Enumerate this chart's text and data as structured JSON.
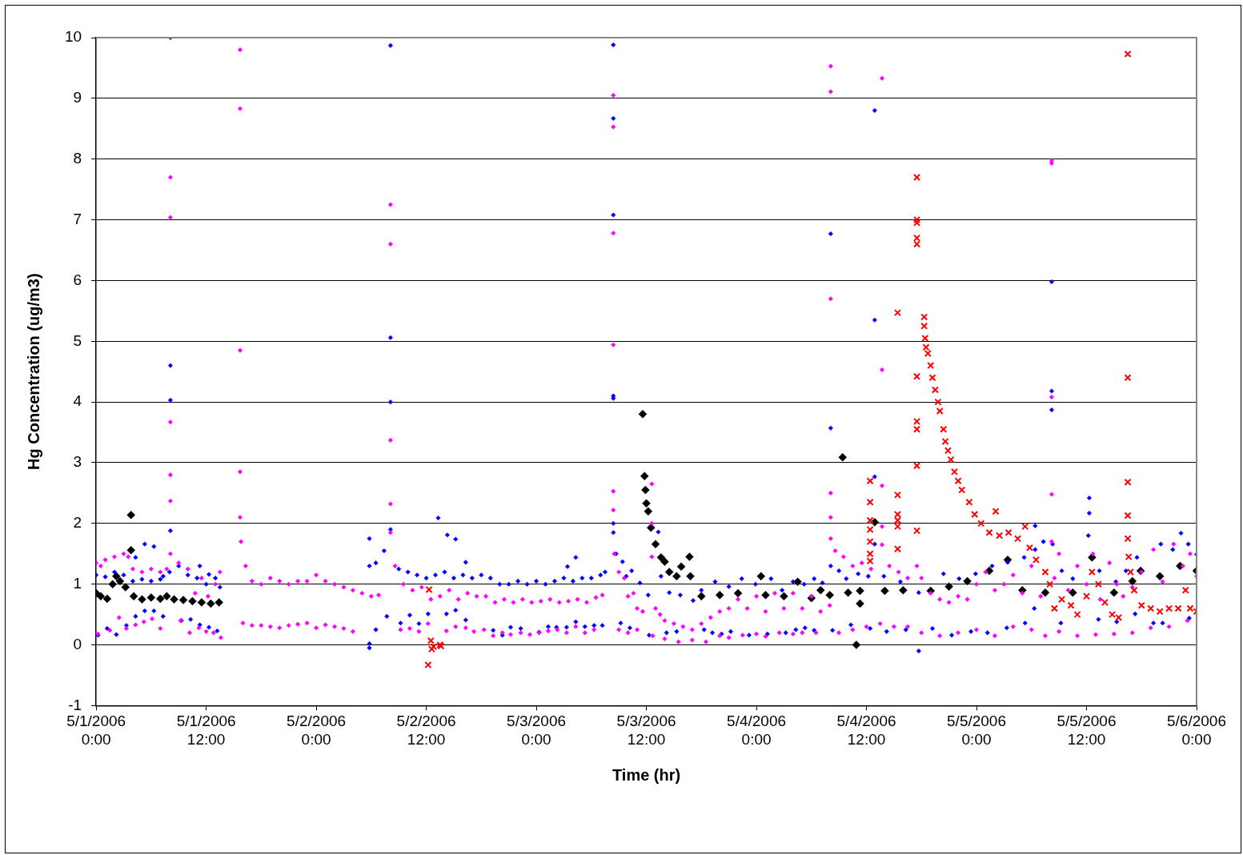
{
  "chart_data": {
    "type": "scatter",
    "xlabel": "Time (hr)",
    "ylabel": "Hg Concentration (ug/m3)",
    "xlim": [
      "2006-05-01T00:00",
      "2006-05-06T00:00"
    ],
    "xticks": [
      {
        "value": "2006-05-01T00:00",
        "label": "5/1/2006 0:00"
      },
      {
        "value": "2006-05-01T12:00",
        "label": "5/1/2006 12:00"
      },
      {
        "value": "2006-05-02T00:00",
        "label": "5/2/2006 0:00"
      },
      {
        "value": "2006-05-02T12:00",
        "label": "5/2/2006 12:00"
      },
      {
        "value": "2006-05-03T00:00",
        "label": "5/3/2006 0:00"
      },
      {
        "value": "2006-05-03T12:00",
        "label": "5/3/2006 12:00"
      },
      {
        "value": "2006-05-04T00:00",
        "label": "5/4/2006 0:00"
      },
      {
        "value": "2006-05-04T12:00",
        "label": "5/4/2006 12:00"
      },
      {
        "value": "2006-05-05T00:00",
        "label": "5/5/2006 0:00"
      },
      {
        "value": "2006-05-05T12:00",
        "label": "5/5/2006 12:00"
      },
      {
        "value": "2006-05-06T00:00",
        "label": "5/6/2006 0:00"
      }
    ],
    "ylim": [
      -1,
      10
    ],
    "yticks": [
      -1,
      0,
      1,
      2,
      3,
      4,
      5,
      6,
      7,
      8,
      9,
      10
    ],
    "grid": "y",
    "legend": false,
    "series": [
      {
        "color": "#000000",
        "marker": "diamond",
        "x": [
          "2006-05-01T00:00",
          "2006-05-01T00:30",
          "2006-05-01T01:12",
          "2006-05-01T01:48",
          "2006-05-01T02:12",
          "2006-05-01T02:36",
          "2006-05-01T03:12",
          "2006-05-01T03:48",
          "2006-05-01T03:48",
          "2006-05-01T04:06",
          "2006-05-01T05:00",
          "2006-05-01T06:00",
          "2006-05-01T07:00",
          "2006-05-01T07:42",
          "2006-05-01T08:30",
          "2006-05-01T09:30",
          "2006-05-01T10:30",
          "2006-05-01T11:30",
          "2006-05-01T12:30",
          "2006-05-01T13:24",
          "2006-05-03T11:36",
          "2006-05-03T11:48",
          "2006-05-03T11:54",
          "2006-05-03T12:00",
          "2006-05-03T12:12",
          "2006-05-03T12:30",
          "2006-05-03T13:00",
          "2006-05-03T13:36",
          "2006-05-03T14:00",
          "2006-05-03T14:30",
          "2006-05-03T15:18",
          "2006-05-03T15:48",
          "2006-05-03T16:42",
          "2006-05-03T16:48",
          "2006-05-03T18:00",
          "2006-05-03T20:00",
          "2006-05-03T22:00",
          "2006-05-04T00:30",
          "2006-05-04T01:00",
          "2006-05-04T03:00",
          "2006-05-04T04:30",
          "2006-05-04T06:00",
          "2006-05-04T07:00",
          "2006-05-04T08:00",
          "2006-05-04T09:24",
          "2006-05-04T10:00",
          "2006-05-04T10:54",
          "2006-05-04T11:18",
          "2006-05-04T11:18",
          "2006-05-04T12:54",
          "2006-05-04T14:00",
          "2006-05-04T16:00",
          "2006-05-04T19:00",
          "2006-05-04T21:00",
          "2006-05-04T23:00",
          "2006-05-05T01:24",
          "2006-05-05T03:24",
          "2006-05-05T05:00",
          "2006-05-05T07:30",
          "2006-05-05T10:30",
          "2006-05-05T12:36",
          "2006-05-05T15:00",
          "2006-05-05T17:00",
          "2006-05-05T17:54",
          "2006-05-05T20:00",
          "2006-05-05T22:12",
          "2006-05-06T00:00"
        ],
        "values": [
          0.85,
          0.8,
          0.76,
          1.0,
          1.13,
          1.05,
          0.95,
          2.14,
          1.56,
          0.8,
          0.75,
          0.78,
          0.76,
          0.8,
          0.75,
          0.74,
          0.72,
          0.7,
          0.68,
          0.7,
          3.8,
          2.78,
          2.55,
          2.33,
          2.2,
          1.93,
          1.66,
          1.44,
          1.37,
          1.2,
          1.13,
          1.29,
          1.45,
          1.13,
          0.8,
          0.82,
          0.85,
          1.13,
          0.82,
          0.8,
          1.04,
          0.77,
          0.9,
          0.82,
          3.09,
          0.86,
          0.0,
          0.68,
          0.89,
          2.02,
          0.89,
          0.9,
          0.89,
          0.96,
          1.05,
          1.22,
          1.4,
          0.9,
          0.86,
          0.86,
          1.44,
          0.86,
          1.05,
          1.22,
          1.13,
          1.3,
          1.22
        ]
      },
      {
        "color": "#0000ff",
        "marker": "diamond",
        "x": [
          "2006-05-01T00:00",
          "2006-05-01T01:00",
          "2006-05-01T02:00",
          "2006-05-01T03:00",
          "2006-05-01T04:00",
          "2006-05-01T05:00",
          "2006-05-01T06:00",
          "2006-05-01T07:00",
          "2006-05-01T08:00",
          "2006-05-01T08:06",
          "2006-05-01T08:06",
          "2006-05-01T08:06",
          "2006-05-01T08:06",
          "2006-05-01T09:00",
          "2006-05-01T10:00",
          "2006-05-01T11:00",
          "2006-05-01T12:00",
          "2006-05-01T13:00",
          "2006-05-01T13:30",
          "2006-05-01T00:12",
          "2006-05-01T01:12",
          "2006-05-01T02:12",
          "2006-05-01T03:18",
          "2006-05-01T04:18",
          "2006-05-01T05:18",
          "2006-05-01T06:18",
          "2006-05-01T07:18",
          "2006-05-01T09:18",
          "2006-05-01T10:18",
          "2006-05-01T11:18",
          "2006-05-01T12:18",
          "2006-05-01T13:12",
          "2006-05-01T05:18",
          "2006-05-01T06:18",
          "2006-05-01T07:18",
          "2006-05-01T04:18",
          "2006-05-01T11:18",
          "2006-05-01T12:18",
          "2006-05-02T05:48",
          "2006-05-02T05:48",
          "2006-05-02T05:48",
          "2006-05-02T05:48",
          "2006-05-02T06:30",
          "2006-05-02T07:24",
          "2006-05-02T08:06",
          "2006-05-02T08:06",
          "2006-05-02T08:06",
          "2006-05-02T08:06",
          "2006-05-02T09:00",
          "2006-05-02T10:00",
          "2006-05-02T11:00",
          "2006-05-02T12:00",
          "2006-05-02T13:00",
          "2006-05-02T14:00",
          "2006-05-02T15:00",
          "2006-05-02T16:00",
          "2006-05-02T17:00",
          "2006-05-02T18:00",
          "2006-05-02T19:00",
          "2006-05-02T20:00",
          "2006-05-02T21:00",
          "2006-05-02T22:00",
          "2006-05-02T23:00",
          "2006-05-03T00:00",
          "2006-05-03T01:00",
          "2006-05-03T02:00",
          "2006-05-03T03:00",
          "2006-05-03T04:00",
          "2006-05-03T05:00",
          "2006-05-03T06:00",
          "2006-05-03T07:00",
          "2006-05-03T07:30",
          "2006-05-02T06:30",
          "2006-05-02T07:42",
          "2006-05-02T09:12",
          "2006-05-02T10:12",
          "2006-05-02T11:12",
          "2006-05-02T12:12",
          "2006-05-02T14:12",
          "2006-05-02T15:12",
          "2006-05-02T16:18",
          "2006-05-02T19:18",
          "2006-05-02T20:18",
          "2006-05-02T21:12",
          "2006-05-02T22:18",
          "2006-05-03T00:18",
          "2006-05-03T01:18",
          "2006-05-03T02:12",
          "2006-05-03T03:18",
          "2006-05-03T04:18",
          "2006-05-03T05:18",
          "2006-05-03T06:18",
          "2006-05-03T07:12",
          "2006-05-02T13:18",
          "2006-05-02T14:18",
          "2006-05-02T15:12",
          "2006-05-02T16:18",
          "2006-05-03T04:18",
          "2006-05-03T03:24",
          "2006-05-03T08:24",
          "2006-05-03T08:24",
          "2006-05-03T08:24",
          "2006-05-03T08:24",
          "2006-05-03T08:24",
          "2006-05-03T08:24",
          "2006-05-03T08:24",
          "2006-05-03T08:42",
          "2006-05-03T09:24",
          "2006-05-03T09:48",
          "2006-05-03T10:24",
          "2006-05-03T11:18",
          "2006-05-03T12:12",
          "2006-05-03T13:18",
          "2006-05-03T13:36",
          "2006-05-03T14:30",
          "2006-05-03T15:42",
          "2006-05-03T17:06",
          "2006-05-03T18:00",
          "2006-05-03T19:30",
          "2006-05-03T21:00",
          "2006-05-03T22:24",
          "2006-05-03T23:54",
          "2006-05-04T01:36",
          "2006-05-04T02:48",
          "2006-05-04T04:00",
          "2006-05-04T05:12",
          "2006-05-04T06:18",
          "2006-05-03T09:12",
          "2006-05-03T10:12",
          "2006-05-03T12:18",
          "2006-05-03T14:12",
          "2006-05-03T15:18",
          "2006-05-03T18:18",
          "2006-05-03T19:12",
          "2006-05-03T20:12",
          "2006-05-03T21:12",
          "2006-05-03T23:12",
          "2006-05-04T01:12",
          "2006-05-04T03:12",
          "2006-05-04T04:18",
          "2006-05-04T05:18",
          "2006-05-04T06:18",
          "2006-05-04T07:12",
          "2006-05-04T08:06",
          "2006-05-04T08:06",
          "2006-05-04T08:06",
          "2006-05-04T09:00",
          "2006-05-04T09:48",
          "2006-05-04T11:06",
          "2006-05-04T12:12",
          "2006-05-04T12:54",
          "2006-05-04T12:54",
          "2006-05-04T12:54",
          "2006-05-04T12:54",
          "2006-05-04T13:54",
          "2006-05-04T15:42",
          "2006-05-04T17:42",
          "2006-05-04T17:42",
          "2006-05-04T20:24",
          "2006-05-04T22:06",
          "2006-05-04T23:54",
          "2006-05-05T01:42",
          "2006-05-05T03:24",
          "2006-05-05T05:12",
          "2006-05-05T06:24",
          "2006-05-05T06:24",
          "2006-05-05T07:18",
          "2006-05-05T08:18",
          "2006-05-05T08:12",
          "2006-05-05T08:12",
          "2006-05-05T08:12",
          "2006-05-05T09:18",
          "2006-05-05T10:30",
          "2006-05-05T12:12",
          "2006-05-05T12:18",
          "2006-05-05T12:18",
          "2006-05-05T13:24",
          "2006-05-05T15:12",
          "2006-05-05T16:18",
          "2006-05-05T17:30",
          "2006-05-05T19:18",
          "2006-05-05T20:06",
          "2006-05-05T21:24",
          "2006-05-05T22:18",
          "2006-05-05T23:06",
          "2006-05-06T00:00",
          "2006-05-04T08:18",
          "2006-05-04T10:18",
          "2006-05-04T12:24",
          "2006-05-04T14:12",
          "2006-05-04T16:18",
          "2006-05-04T19:12",
          "2006-05-04T21:18",
          "2006-05-04T23:24",
          "2006-05-05T01:12",
          "2006-05-05T03:18",
          "2006-05-05T05:18",
          "2006-05-05T06:18",
          "2006-05-05T09:12",
          "2006-05-05T13:18",
          "2006-05-05T15:18",
          "2006-05-05T17:18",
          "2006-05-05T19:18",
          "2006-05-05T20:18",
          "2006-05-05T23:12"
        ],
        "values": [
          1.15,
          1.12,
          1.2,
          1.15,
          1.05,
          1.08,
          1.05,
          1.08,
          1.2,
          1.88,
          4.03,
          4.6,
          10.0,
          1.3,
          1.15,
          1.1,
          1.0,
          1.1,
          0.95,
          0.16,
          0.27,
          0.17,
          0.32,
          0.47,
          0.56,
          0.56,
          0.47,
          0.4,
          0.42,
          0.33,
          0.29,
          0.23,
          1.66,
          1.62,
          1.13,
          1.44,
          1.3,
          1.16,
          -0.05,
          0.02,
          1.3,
          1.75,
          1.35,
          1.55,
          1.9,
          4.0,
          5.06,
          9.87,
          1.25,
          1.2,
          1.15,
          1.1,
          1.15,
          1.2,
          1.1,
          1.15,
          1.1,
          1.15,
          1.1,
          1.0,
          1.0,
          1.05,
          1.0,
          1.05,
          1.0,
          1.05,
          1.1,
          1.05,
          1.1,
          1.1,
          1.15,
          1.2,
          0.25,
          0.47,
          0.36,
          0.49,
          0.35,
          0.51,
          0.51,
          0.57,
          0.41,
          0.24,
          0.16,
          0.29,
          0.27,
          0.21,
          0.3,
          0.29,
          0.29,
          0.38,
          0.3,
          0.32,
          0.32,
          2.09,
          1.81,
          1.74,
          1.36,
          1.44,
          1.29,
          1.85,
          2.0,
          4.06,
          4.1,
          7.08,
          8.67,
          9.88,
          1.5,
          1.37,
          1.13,
          1.22,
          1.02,
          0.82,
          1.86,
          1.13,
          0.86,
          0.82,
          0.73,
          0.9,
          1.04,
          0.96,
          1.09,
          1.0,
          1.09,
          0.9,
          1.04,
          1.0,
          1.09,
          0.36,
          0.28,
          0.16,
          0.2,
          0.22,
          0.25,
          0.2,
          0.18,
          0.22,
          0.16,
          0.18,
          0.2,
          0.25,
          0.28,
          0.24,
          1.02,
          1.3,
          3.57,
          6.77,
          1.22,
          1.09,
          1.17,
          1.13,
          2.77,
          5.35,
          8.8,
          1.66,
          1.13,
          1.04,
          0.86,
          -0.1,
          1.17,
          1.09,
          1.17,
          1.3,
          1.36,
          1.44,
          1.57,
          1.96,
          1.7,
          1.66,
          3.87,
          4.18,
          5.98,
          1.22,
          1.09,
          1.8,
          2.42,
          2.17,
          1.22,
          1.04,
          1.22,
          1.44,
          null,
          1.66,
          1.57,
          1.84,
          1.66,
          1.49,
          0.24,
          0.33,
          0.27,
          0.22,
          0.25,
          0.27,
          0.16,
          0.22,
          0.2,
          0.28,
          0.36,
          0.6,
          0.36,
          0.42,
          0.38,
          0.51,
          0.36,
          0.36,
          0.44
        ]
      },
      {
        "color": "#ff00ff",
        "marker": "diamond",
        "x": [
          "2006-05-01T00:00",
          "2006-05-01T00:30",
          "2006-05-01T01:00",
          "2006-05-01T02:00",
          "2006-05-01T03:00",
          "2006-05-01T03:30",
          "2006-05-01T04:00",
          "2006-05-01T05:00",
          "2006-05-01T06:00",
          "2006-05-01T07:00",
          "2006-05-01T07:42",
          "2006-05-01T08:06",
          "2006-05-01T08:06",
          "2006-05-01T08:06",
          "2006-05-01T08:06",
          "2006-05-01T08:06",
          "2006-05-01T08:06",
          "2006-05-01T09:00",
          "2006-05-01T10:00",
          "2006-05-01T10:48",
          "2006-05-01T11:30",
          "2006-05-01T12:12",
          "2006-05-01T13:00",
          "2006-05-01T13:30",
          "2006-05-01T00:12",
          "2006-05-01T01:30",
          "2006-05-01T02:30",
          "2006-05-01T03:18",
          "2006-05-01T04:18",
          "2006-05-01T05:12",
          "2006-05-01T06:06",
          "2006-05-01T07:00",
          "2006-05-01T09:12",
          "2006-05-01T10:12",
          "2006-05-01T11:12",
          "2006-05-01T12:00",
          "2006-05-01T12:48",
          "2006-05-01T13:36",
          "2006-05-01T15:42",
          "2006-05-01T15:42",
          "2006-05-01T15:42",
          "2006-05-01T15:42",
          "2006-05-01T15:42",
          "2006-05-01T15:48",
          "2006-05-01T16:18",
          "2006-05-01T17:00",
          "2006-05-01T18:00",
          "2006-05-01T19:00",
          "2006-05-01T20:00",
          "2006-05-01T21:00",
          "2006-05-01T22:00",
          "2006-05-01T23:00",
          "2006-05-02T00:00",
          "2006-05-02T01:00",
          "2006-05-02T02:00",
          "2006-05-02T03:00",
          "2006-05-02T04:00",
          "2006-05-02T05:00",
          "2006-05-02T06:00",
          "2006-05-02T06:48",
          "2006-05-01T16:00",
          "2006-05-01T17:00",
          "2006-05-01T18:00",
          "2006-05-01T19:00",
          "2006-05-01T20:00",
          "2006-05-01T21:00",
          "2006-05-01T22:00",
          "2006-05-01T23:00",
          "2006-05-02T00:00",
          "2006-05-02T01:00",
          "2006-05-02T02:00",
          "2006-05-02T03:00",
          "2006-05-02T04:00",
          "2006-05-02T08:06",
          "2006-05-02T08:06",
          "2006-05-02T08:06",
          "2006-05-02T08:06",
          "2006-05-02T08:06",
          "2006-05-02T08:36",
          "2006-05-02T09:30",
          "2006-05-02T10:30",
          "2006-05-02T11:30",
          "2006-05-02T12:30",
          "2006-05-02T13:30",
          "2006-05-02T14:30",
          "2006-05-02T15:30",
          "2006-05-02T16:30",
          "2006-05-02T17:30",
          "2006-05-02T18:30",
          "2006-05-02T19:30",
          "2006-05-02T20:30",
          "2006-05-02T21:30",
          "2006-05-02T22:30",
          "2006-05-02T23:30",
          "2006-05-03T00:30",
          "2006-05-03T01:30",
          "2006-05-03T02:30",
          "2006-05-03T03:30",
          "2006-05-03T04:30",
          "2006-05-03T05:30",
          "2006-05-03T06:30",
          "2006-05-03T07:12",
          "2006-05-02T09:12",
          "2006-05-02T10:12",
          "2006-05-02T11:12",
          "2006-05-02T12:12",
          "2006-05-02T14:12",
          "2006-05-02T15:12",
          "2006-05-02T16:18",
          "2006-05-02T17:12",
          "2006-05-02T18:18",
          "2006-05-02T19:18",
          "2006-05-02T20:18",
          "2006-05-02T21:12",
          "2006-05-02T22:18",
          "2006-05-02T23:18",
          "2006-05-03T00:18",
          "2006-05-03T01:18",
          "2006-05-03T02:18",
          "2006-05-03T03:18",
          "2006-05-03T04:18",
          "2006-05-03T05:18",
          "2006-05-03T06:18",
          "2006-05-03T08:24",
          "2006-05-03T08:24",
          "2006-05-03T08:24",
          "2006-05-03T08:24",
          "2006-05-03T08:24",
          "2006-05-03T08:24",
          "2006-05-03T08:30",
          "2006-05-03T09:00",
          "2006-05-03T09:36",
          "2006-05-03T10:00",
          "2006-05-03T10:36",
          "2006-05-03T11:00",
          "2006-05-03T11:36",
          "2006-05-03T12:36",
          "2006-05-03T12:36",
          "2006-05-03T12:36",
          "2006-05-03T13:00",
          "2006-05-03T13:30",
          "2006-05-03T14:00",
          "2006-05-03T15:00",
          "2006-05-03T16:00",
          "2006-05-03T17:00",
          "2006-05-03T18:00",
          "2006-05-03T19:00",
          "2006-05-03T20:00",
          "2006-05-03T21:00",
          "2006-05-03T22:00",
          "2006-05-03T23:00",
          "2006-05-04T00:00",
          "2006-05-04T01:00",
          "2006-05-04T02:00",
          "2006-05-04T03:00",
          "2006-05-04T04:00",
          "2006-05-04T05:00",
          "2006-05-04T06:00",
          "2006-05-04T07:00",
          "2006-05-04T08:00",
          "2006-05-03T09:00",
          "2006-05-03T10:00",
          "2006-05-03T11:00",
          "2006-05-03T12:42",
          "2006-05-03T14:00",
          "2006-05-03T15:30",
          "2006-05-03T17:00",
          "2006-05-03T18:30",
          "2006-05-03T20:00",
          "2006-05-03T21:00",
          "2006-05-03T22:30",
          "2006-05-04T00:00",
          "2006-05-04T01:00",
          "2006-05-04T02:30",
          "2006-05-04T04:00",
          "2006-05-04T05:00",
          "2006-05-04T06:30",
          "2006-05-04T08:06",
          "2006-05-04T08:06",
          "2006-05-04T08:06",
          "2006-05-04T08:06",
          "2006-05-04T08:06",
          "2006-05-04T08:06",
          "2006-05-04T08:36",
          "2006-05-04T09:30",
          "2006-05-04T10:30",
          "2006-05-04T11:30",
          "2006-05-04T12:30",
          "2006-05-04T13:42",
          "2006-05-04T13:42",
          "2006-05-04T13:42",
          "2006-05-04T13:42",
          "2006-05-04T13:42",
          "2006-05-04T14:30",
          "2006-05-04T15:30",
          "2006-05-04T16:30",
          "2006-05-04T17:30",
          "2006-05-04T18:00",
          "2006-05-04T19:00",
          "2006-05-04T20:00",
          "2006-05-04T21:00",
          "2006-05-04T22:00",
          "2006-05-04T23:00",
          "2006-05-05T00:00",
          "2006-05-05T01:00",
          "2006-05-05T02:00",
          "2006-05-05T03:00",
          "2006-05-05T04:00",
          "2006-05-05T05:00",
          "2006-05-05T06:00",
          "2006-05-05T07:00",
          "2006-05-05T08:12",
          "2006-05-05T08:12",
          "2006-05-05T08:12",
          "2006-05-05T08:12",
          "2006-05-05T08:12",
          "2006-05-05T08:30",
          "2006-05-05T09:00",
          "2006-05-05T10:00",
          "2006-05-05T11:00",
          "2006-05-05T12:00",
          "2006-05-05T12:42",
          "2006-05-05T13:30",
          "2006-05-05T14:30",
          "2006-05-05T15:18",
          "2006-05-05T16:00",
          "2006-05-05T17:00",
          "2006-05-05T18:00",
          "2006-05-05T19:18",
          "2006-05-05T20:18",
          "2006-05-05T21:30",
          "2006-05-05T22:30",
          "2006-05-05T23:18",
          "2006-05-06T00:00",
          "2006-05-04T09:00",
          "2006-05-04T10:30",
          "2006-05-04T12:00",
          "2006-05-04T13:30",
          "2006-05-04T15:00",
          "2006-05-04T16:30",
          "2006-05-04T18:00",
          "2006-05-04T20:00",
          "2006-05-04T22:00",
          "2006-05-05T00:00",
          "2006-05-05T02:00",
          "2006-05-05T04:00",
          "2006-05-05T06:00",
          "2006-05-05T07:30",
          "2006-05-05T09:00",
          "2006-05-05T11:00",
          "2006-05-05T13:00",
          "2006-05-05T15:00",
          "2006-05-05T17:00",
          "2006-05-05T19:00",
          "2006-05-05T21:00",
          "2006-05-05T23:00"
        ],
        "values": [
          1.35,
          1.3,
          1.4,
          1.45,
          1.5,
          1.45,
          1.25,
          1.2,
          1.25,
          1.2,
          1.25,
          1.5,
          2.37,
          2.8,
          3.67,
          7.04,
          7.7,
          1.35,
          1.25,
          0.85,
          1.1,
          0.8,
          1.0,
          1.2,
          0.18,
          0.24,
          0.45,
          0.27,
          0.33,
          0.38,
          0.43,
          0.27,
          0.4,
          0.2,
          0.28,
          0.22,
          0.2,
          0.12,
          2.1,
          2.85,
          4.85,
          8.83,
          9.8,
          1.7,
          1.3,
          1.05,
          1.0,
          1.1,
          1.05,
          1.0,
          1.05,
          1.05,
          1.15,
          1.05,
          1.0,
          0.95,
          0.9,
          0.85,
          0.8,
          0.82,
          0.36,
          0.32,
          0.32,
          0.3,
          0.28,
          0.32,
          0.34,
          0.36,
          0.28,
          0.33,
          0.3,
          0.27,
          0.22,
          2.32,
          3.37,
          6.6,
          7.25,
          1.85,
          1.3,
          1.0,
          0.9,
          0.95,
          0.75,
          0.8,
          0.9,
          0.75,
          0.85,
          0.8,
          0.8,
          0.7,
          0.75,
          0.7,
          0.75,
          0.7,
          0.72,
          0.75,
          0.7,
          0.72,
          0.75,
          0.7,
          0.78,
          0.82,
          0.25,
          0.27,
          0.22,
          0.35,
          0.23,
          0.3,
          0.28,
          0.22,
          0.25,
          0.15,
          0.2,
          0.17,
          0.2,
          0.17,
          0.2,
          0.23,
          0.25,
          0.2,
          0.3,
          0.2,
          0.25,
          2.22,
          2.53,
          4.94,
          6.78,
          8.53,
          9.05,
          1.5,
          1.2,
          1.1,
          0.8,
          0.85,
          0.6,
          0.55,
          1.45,
          2.0,
          2.65,
          0.6,
          0.5,
          0.4,
          0.35,
          0.3,
          0.25,
          0.35,
          0.45,
          0.55,
          0.6,
          0.75,
          0.6,
          0.8,
          0.55,
          0.85,
          0.6,
          0.85,
          0.6,
          0.8,
          0.55,
          0.65,
          0.25,
          0.2,
          0.25,
          0.15,
          0.1,
          0.05,
          0.08,
          0.05,
          0.15,
          0.12,
          0.16,
          0.18,
          0.14,
          0.2,
          0.18,
          0.2,
          0.2,
          1.75,
          2.1,
          2.5,
          5.7,
          9.11,
          9.53,
          1.55,
          1.45,
          1.3,
          1.35,
          1.25,
          1.65,
          1.95,
          2.62,
          4.53,
          9.33,
          1.3,
          1.2,
          1.1,
          1.3,
          1.1,
          0.85,
          0.75,
          0.7,
          0.8,
          0.75,
          1.0,
          1.2,
          0.9,
          1.0,
          1.15,
          0.85,
          1.3,
          0.8,
          1.7,
          2.48,
          4.08,
          7.93,
          7.97,
          1.1,
          1.5,
          0.9,
          1.3,
          1.0,
          1.5,
          0.75,
          1.35,
          1.0,
          0.8,
          0.95,
          1.2,
          1.57,
          1.04,
          1.66,
          1.3,
          1.5,
          1.13,
          0.2,
          0.25,
          0.3,
          0.35,
          0.3,
          0.3,
          0.2,
          0.15,
          0.2,
          0.25,
          0.15,
          0.3,
          0.25,
          0.15,
          0.22,
          0.15,
          0.17,
          0.18,
          0.2,
          0.28,
          0.3,
          0.4
        ]
      },
      {
        "color": "#ff0000",
        "marker": "cross",
        "x": [
          "2006-05-02T12:12",
          "2006-05-02T12:18",
          "2006-05-02T12:30",
          "2006-05-02T12:36",
          "2006-05-02T12:48",
          "2006-05-02T13:30",
          "2006-05-02T13:36",
          "2006-05-04T12:24",
          "2006-05-04T12:24",
          "2006-05-04T12:24",
          "2006-05-04T12:24",
          "2006-05-04T12:24",
          "2006-05-04T12:24",
          "2006-05-04T12:24",
          "2006-05-04T15:24",
          "2006-05-04T15:24",
          "2006-05-04T15:24",
          "2006-05-04T15:24",
          "2006-05-04T15:24",
          "2006-05-04T15:24",
          "2006-05-04T17:30",
          "2006-05-04T17:30",
          "2006-05-04T17:30",
          "2006-05-04T17:30",
          "2006-05-04T17:30",
          "2006-05-04T17:30",
          "2006-05-04T17:30",
          "2006-05-04T17:30",
          "2006-05-04T17:30",
          "2006-05-04T17:30",
          "2006-05-04T18:18",
          "2006-05-04T18:18",
          "2006-05-04T18:24",
          "2006-05-04T18:30",
          "2006-05-04T18:42",
          "2006-05-04T19:00",
          "2006-05-04T19:12",
          "2006-05-04T19:30",
          "2006-05-04T19:48",
          "2006-05-04T20:00",
          "2006-05-04T20:24",
          "2006-05-04T20:36",
          "2006-05-04T20:54",
          "2006-05-04T21:12",
          "2006-05-04T21:36",
          "2006-05-04T22:00",
          "2006-05-04T22:24",
          "2006-05-04T23:12",
          "2006-05-04T23:48",
          "2006-05-05T00:30",
          "2006-05-05T01:24",
          "2006-05-05T02:06",
          "2006-05-05T02:30",
          "2006-05-05T03:30",
          "2006-05-05T04:30",
          "2006-05-05T05:18",
          "2006-05-05T05:48",
          "2006-05-05T06:30",
          "2006-05-05T07:30",
          "2006-05-05T08:00",
          "2006-05-05T08:30",
          "2006-05-05T09:18",
          "2006-05-05T10:18",
          "2006-05-05T11:00",
          "2006-05-05T12:00",
          "2006-05-05T12:36",
          "2006-05-05T13:18",
          "2006-05-05T14:00",
          "2006-05-05T14:48",
          "2006-05-05T15:30",
          "2006-05-05T16:30",
          "2006-05-05T16:30",
          "2006-05-05T16:30",
          "2006-05-05T16:30",
          "2006-05-05T16:30",
          "2006-05-05T16:36",
          "2006-05-05T16:48",
          "2006-05-05T17:12",
          "2006-05-05T18:00",
          "2006-05-05T19:00",
          "2006-05-05T20:00",
          "2006-05-05T21:00",
          "2006-05-05T22:00",
          "2006-05-05T22:48",
          "2006-05-05T23:18",
          "2006-05-06T00:00"
        ],
        "values": [
          -0.33,
          0.91,
          0.07,
          -0.07,
          -0.03,
          0.0,
          -0.02,
          2.7,
          2.35,
          2.05,
          1.9,
          1.7,
          1.5,
          1.38,
          5.47,
          2.47,
          2.15,
          2.05,
          1.95,
          1.58,
          7.7,
          7.0,
          6.95,
          6.7,
          6.6,
          4.42,
          3.68,
          3.55,
          2.95,
          1.88,
          5.4,
          5.25,
          5.05,
          4.9,
          4.8,
          4.6,
          4.4,
          4.2,
          4.0,
          3.85,
          3.55,
          3.35,
          3.2,
          3.05,
          2.85,
          2.7,
          2.55,
          2.35,
          2.15,
          2.0,
          1.85,
          2.2,
          1.8,
          1.85,
          1.75,
          1.95,
          1.6,
          1.4,
          1.2,
          1.0,
          0.6,
          0.75,
          0.65,
          0.5,
          0.8,
          1.2,
          1.0,
          0.7,
          0.5,
          0.45,
          9.73,
          4.4,
          2.68,
          2.13,
          1.75,
          1.45,
          1.2,
          0.9,
          0.65,
          0.6,
          0.55,
          0.6,
          0.6,
          0.9,
          0.6,
          0.55
        ]
      }
    ]
  }
}
